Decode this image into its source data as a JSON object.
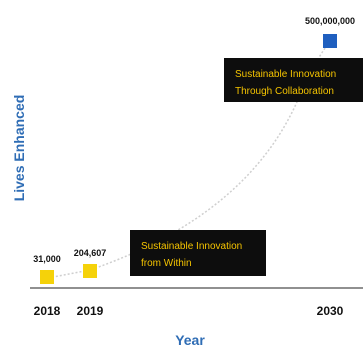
{
  "chart_data": {
    "type": "scatter",
    "ylabel": "Lives Enhanced",
    "xlabel": "Year",
    "x_ticks": [
      "2018",
      "2019",
      "2030"
    ],
    "points": [
      {
        "x": 2018,
        "y": 31000,
        "label": "31,000",
        "color": "#f5d20a"
      },
      {
        "x": 2019,
        "y": 204607,
        "label": "204,607",
        "color": "#f5d20a"
      },
      {
        "x": 2030,
        "y": 500000000,
        "label": "500,000,000",
        "color": "#1f5fbf"
      }
    ],
    "trend_line": "dotted curve",
    "annotations": [
      {
        "lines": [
          "Sustainable Innovation",
          "from Within"
        ]
      },
      {
        "lines": [
          "Sustainable Innovation",
          "Through Collaboration"
        ]
      }
    ],
    "grid": false
  },
  "colors": {
    "axis_title": "#2f6db5",
    "annotation_bg": "#0d0d0d",
    "annotation_text": "#f5c400",
    "trend": "#c9c9c9"
  }
}
